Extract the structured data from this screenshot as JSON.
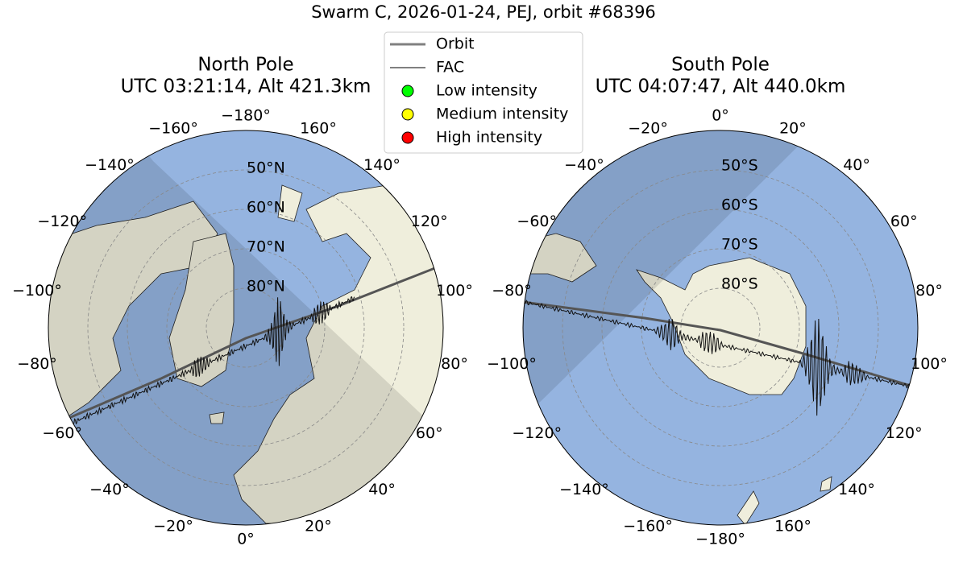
{
  "title": "Swarm C, 2026-01-24, PEJ, orbit #68396",
  "legend": [
    "Orbit",
    "FAC",
    "Low intensity",
    "Medium intensity",
    "High intensity"
  ],
  "panels": [
    {
      "title": [
        "North Pole",
        "UTC 03:21:14, Alt 421.3km"
      ],
      "lon_labels": [
        "−180°",
        "−160°",
        "−140°",
        "−120°",
        "−100°",
        "−80°",
        "−60°",
        "−40°",
        "−20°",
        "0°",
        "20°",
        "40°",
        "60°",
        "80°",
        "100°",
        "120°",
        "140°",
        "160°"
      ],
      "lat_labels": [
        "50°N",
        "60°N",
        "70°N",
        "80°N"
      ]
    },
    {
      "title": [
        "South Pole",
        "UTC 04:07:47, Alt 440.0km"
      ],
      "lon_labels": [
        "0°",
        "20°",
        "40°",
        "60°",
        "80°",
        "100°",
        "120°",
        "140°",
        "160°",
        "−180°",
        "−160°",
        "−140°",
        "−120°",
        "−100°",
        "−80°",
        "−60°",
        "−40°",
        "−20°"
      ],
      "lat_labels": [
        "50°S",
        "60°S",
        "70°S",
        "80°S"
      ]
    }
  ]
}
